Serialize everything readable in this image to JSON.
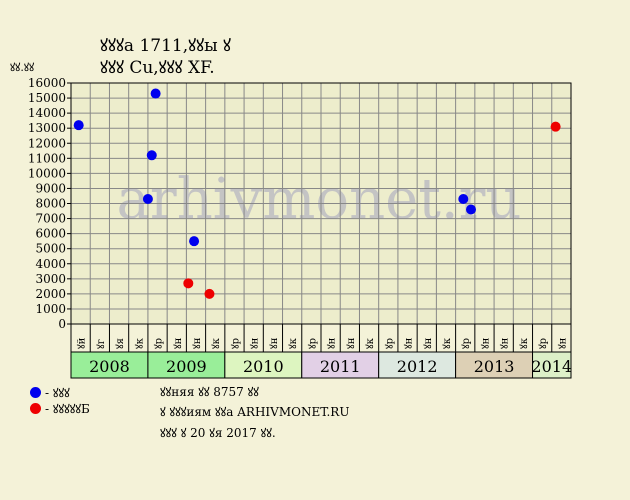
{
  "header": {
    "title_line1": "ꙋꙋꙋа 1711,ꙋꙋы ꙋ",
    "title_line2": "ꙋꙋꙋ Cu,ꙋꙋꙋ XF.",
    "y_unit_label": "ꙋꙋ.ꙋꙋ"
  },
  "watermark": "arhivmonet.ru",
  "legend": [
    {
      "label": "- ꙋꙋꙋ",
      "color": "#0000ee"
    },
    {
      "label": "- ꙋꙋꙋꙋꙋБ",
      "color": "#ee0000"
    }
  ],
  "footnotes": [
    "ꙋꙋняя ꙋꙋ 8757 ꙋꙋ",
    "ꙋ ꙋꙋꙋиям ꙋꙋа ARHIVMONET.RU",
    "ꙋꙋꙋ ꙋ 20 ꙋя 2017 ꙋꙋ."
  ],
  "chart_data": {
    "type": "scatter",
    "title": "ꙋꙋꙋа 1711,ꙋꙋы ꙋ ꙋꙋꙋ Cu,ꙋꙋꙋ XF.",
    "ylabel": "ꙋꙋ.ꙋꙋ",
    "ylim": [
      0,
      16000
    ],
    "yticks": [
      0,
      1000,
      2000,
      3000,
      4000,
      5000,
      6000,
      7000,
      8000,
      9000,
      10000,
      11000,
      12000,
      13000,
      14000,
      15000,
      16000
    ],
    "grid": true,
    "x_quarter_labels": [
      "ꙋй",
      "ꙋг",
      "ꙋя",
      "ꙋк",
      "ꙋр",
      "ꙋн",
      "ꙋн",
      "ꙋк",
      "ꙋр",
      "ꙋн",
      "ꙋн",
      "ꙋк",
      "ꙋр",
      "ꙋн",
      "ꙋн",
      "ꙋк",
      "ꙋр",
      "ꙋн",
      "ꙋн",
      "ꙋк",
      "ꙋр",
      "ꙋн",
      "ꙋн",
      "ꙋк",
      "ꙋр",
      "ꙋн"
    ],
    "years": [
      {
        "label": "2008",
        "quarters": 4,
        "color": "#99ee99"
      },
      {
        "label": "2009",
        "quarters": 4,
        "color": "#99ee99"
      },
      {
        "label": "2010",
        "quarters": 4,
        "color": "#ddf5c0"
      },
      {
        "label": "2011",
        "quarters": 4,
        "color": "#e2d0e6"
      },
      {
        "label": "2012",
        "quarters": 4,
        "color": "#dde8e0"
      },
      {
        "label": "2013",
        "quarters": 4,
        "color": "#ddd0b5"
      },
      {
        "label": "2014",
        "quarters": 2,
        "color": "#ddf0c8"
      }
    ],
    "series": [
      {
        "name": "- ꙋꙋꙋ",
        "color": "#0000ee",
        "points": [
          {
            "x": 0.4,
            "y": 13200
          },
          {
            "x": 4.0,
            "y": 8300
          },
          {
            "x": 4.2,
            "y": 11200
          },
          {
            "x": 4.4,
            "y": 15300
          },
          {
            "x": 6.4,
            "y": 5500
          },
          {
            "x": 20.4,
            "y": 8300
          },
          {
            "x": 20.8,
            "y": 7600
          }
        ]
      },
      {
        "name": "- ꙋꙋꙋꙋꙋБ",
        "color": "#ee0000",
        "points": [
          {
            "x": 6.1,
            "y": 2700
          },
          {
            "x": 7.2,
            "y": 2000
          },
          {
            "x": 25.2,
            "y": 13100
          }
        ]
      }
    ]
  }
}
